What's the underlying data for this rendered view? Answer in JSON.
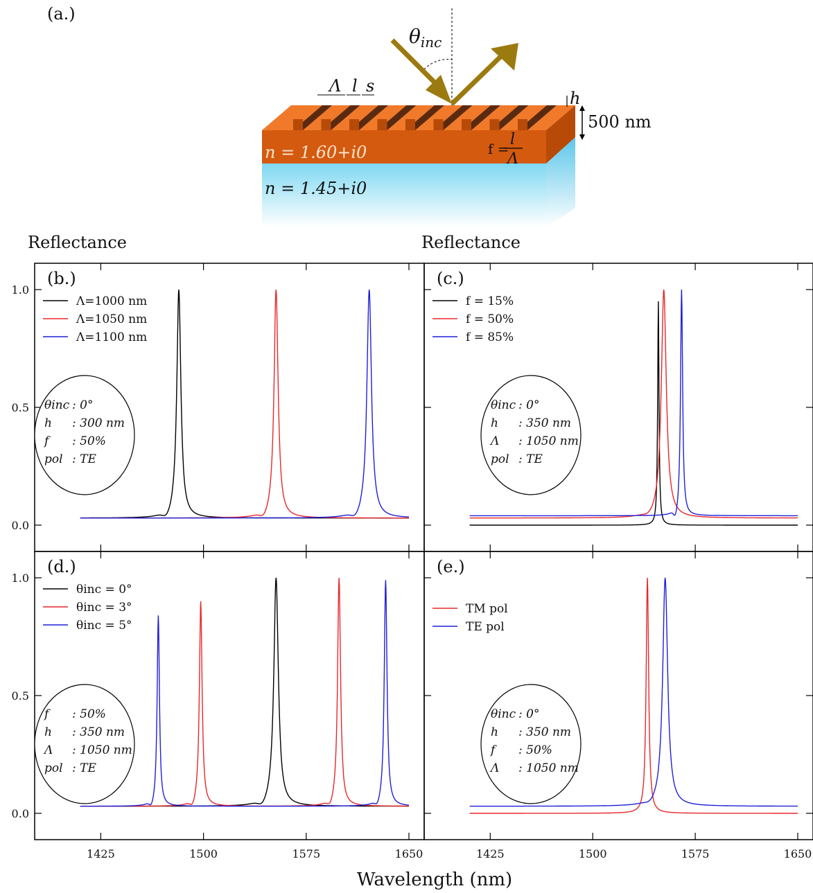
{
  "figure": {
    "panel_a_label": "(a.)",
    "theta_label": "θ",
    "theta_sub": "inc",
    "period_symbol": "Λ",
    "line_symbol": "l",
    "space_symbol": "s",
    "height_symbol": "h",
    "thickness_label": "500 nm",
    "grating_index": "n = 1.60+i0",
    "substrate_index": "n = 1.45+i0",
    "fill_lhs": "f =",
    "fill_num": "l",
    "fill_den": "Λ",
    "ylabel_left": "Reflectance",
    "ylabel_right": "Reflectance",
    "xlabel": "Wavelength (nm)"
  },
  "colors": {
    "black": "#000000",
    "red": "#e8262b",
    "blue": "#1f1fd8",
    "grating_top": "#f07a2a",
    "grating_front": "#d45a10",
    "groove": "#5a2a10",
    "substrate": "#7fd8f2",
    "arrow": "#9b7a10"
  },
  "chart_data": [
    {
      "type": "line",
      "panel": "(b.)",
      "xlim": [
        1400,
        1650
      ],
      "ylim": [
        0,
        1
      ],
      "xticks": [
        1425,
        1500,
        1575,
        1650
      ],
      "yticks": [
        0.0,
        0.5,
        1.0
      ],
      "ytick_labels": [
        "0.0",
        "0.5",
        "1.0"
      ],
      "legend": "top-left",
      "series": [
        {
          "name": "Λ=1000 nm",
          "color": "black",
          "center": 1482,
          "width": 1.8,
          "peak": 1.0,
          "base": 0.03,
          "dip": 0.02
        },
        {
          "name": "Λ=1050 nm",
          "color": "red",
          "center": 1553,
          "width": 1.8,
          "peak": 1.0,
          "base": 0.03,
          "dip": 0.02
        },
        {
          "name": "Λ=1100 nm",
          "color": "blue",
          "center": 1621,
          "width": 2.0,
          "peak": 1.0,
          "base": 0.03,
          "dip": 0.02
        }
      ],
      "annotation": [
        {
          "key": "θinc",
          "value": ": 0°"
        },
        {
          "key": "h",
          "value": ": 300 nm"
        },
        {
          "key": "f",
          "value": ": 50%"
        },
        {
          "key": "pol",
          "value": ": TE"
        }
      ]
    },
    {
      "type": "line",
      "panel": "(c.)",
      "xlim": [
        1400,
        1650
      ],
      "ylim": [
        0,
        1
      ],
      "xticks": [
        1425,
        1500,
        1575,
        1650
      ],
      "yticks": [
        0.0,
        0.5,
        1.0
      ],
      "legend": "top-left",
      "series": [
        {
          "name": "f = 15%",
          "color": "black",
          "center": 1548,
          "width": 0.6,
          "peak": 0.95,
          "base": 0.0,
          "dip": 0.0
        },
        {
          "name": "f = 50%",
          "color": "red",
          "center": 1552,
          "width": 2.2,
          "peak": 1.0,
          "base": 0.03,
          "dip": 0.01
        },
        {
          "name": "f = 85%",
          "color": "blue",
          "center": 1565,
          "width": 0.9,
          "peak": 1.0,
          "base": 0.04,
          "dip": 0.03
        }
      ],
      "annotation": [
        {
          "key": "θinc",
          "value": ": 0°"
        },
        {
          "key": "h",
          "value": ": 350 nm"
        },
        {
          "key": "Λ",
          "value": ": 1050 nm"
        },
        {
          "key": "pol",
          "value": ": TE"
        }
      ]
    },
    {
      "type": "line",
      "panel": "(d.)",
      "xlim": [
        1400,
        1650
      ],
      "ylim": [
        0,
        1
      ],
      "xticks": [
        1425,
        1500,
        1575,
        1650
      ],
      "yticks": [
        0.0,
        0.5,
        1.0
      ],
      "legend": "top-left",
      "series": [
        {
          "name": "θinc = 0°",
          "color": "black",
          "center": 1553,
          "width": 2.0,
          "peak": 1.0,
          "base": 0.03,
          "dip": 0.02
        },
        {
          "name": "θinc = 3°",
          "color": "red",
          "center": 1498,
          "width": 1.2,
          "peak": 0.9,
          "base": 0.03,
          "dip": 0.02,
          "center2": 1599,
          "width2": 1.3,
          "peak2": 1.0
        },
        {
          "name": "θinc = 5°",
          "color": "blue",
          "center": 1467,
          "width": 1.0,
          "peak": 0.84,
          "base": 0.03,
          "dip": 0.02,
          "center2": 1633,
          "width2": 1.2,
          "peak2": 0.99
        }
      ],
      "annotation": [
        {
          "key": "f",
          "value": ": 50%"
        },
        {
          "key": "h",
          "value": ": 350 nm"
        },
        {
          "key": "Λ",
          "value": ": 1050 nm"
        },
        {
          "key": "pol",
          "value": ": TE"
        }
      ]
    },
    {
      "type": "line",
      "panel": "(e.)",
      "xlim": [
        1400,
        1650
      ],
      "ylim": [
        0,
        1
      ],
      "xticks": [
        1425,
        1500,
        1575,
        1650
      ],
      "yticks": [
        0.0,
        0.5,
        1.0
      ],
      "legend": "top-left",
      "series": [
        {
          "name": "TM pol",
          "color": "red",
          "center": 1540,
          "width": 1.1,
          "peak": 1.0,
          "base": 0.0,
          "dip": 0.0
        },
        {
          "name": "TE pol",
          "color": "blue",
          "center": 1553,
          "width": 2.2,
          "peak": 1.0,
          "base": 0.03,
          "dip": 0.01
        }
      ],
      "annotation": [
        {
          "key": "θinc",
          "value": ": 0°"
        },
        {
          "key": "h",
          "value": ": 350 nm"
        },
        {
          "key": "f",
          "value": ": 50%"
        },
        {
          "key": "Λ",
          "value": ": 1050 nm"
        }
      ]
    }
  ]
}
